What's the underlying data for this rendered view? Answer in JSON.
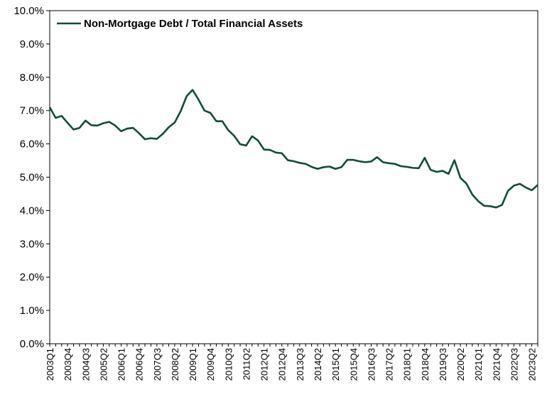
{
  "chart_data": {
    "type": "line",
    "title": "",
    "xlabel": "",
    "ylabel": "",
    "ylim": [
      0,
      10
    ],
    "grid": false,
    "legend_position": "top-left",
    "line_color": "#0f4d3a",
    "y_ticks": [
      "0.0%",
      "1.0%",
      "2.0%",
      "3.0%",
      "4.0%",
      "5.0%",
      "6.0%",
      "7.0%",
      "8.0%",
      "9.0%",
      "10.0%"
    ],
    "x_tick_labels": [
      "2003Q1",
      "2003Q4",
      "2004Q3",
      "2005Q2",
      "2006Q1",
      "2006Q4",
      "2007Q3",
      "2008Q2",
      "2009Q1",
      "2009Q4",
      "2010Q3",
      "2011Q2",
      "2012Q1",
      "2012Q4",
      "2013Q3",
      "2014Q2",
      "2015Q1",
      "2015Q4",
      "2016Q3",
      "2017Q2",
      "2018Q1",
      "2018Q4",
      "2019Q3",
      "2020Q2",
      "2021Q1",
      "2021Q4",
      "2022Q3",
      "2023Q2"
    ],
    "categories": [
      "2003Q1",
      "2003Q2",
      "2003Q3",
      "2003Q4",
      "2004Q1",
      "2004Q2",
      "2004Q3",
      "2004Q4",
      "2005Q1",
      "2005Q2",
      "2005Q3",
      "2005Q4",
      "2006Q1",
      "2006Q2",
      "2006Q3",
      "2006Q4",
      "2007Q1",
      "2007Q2",
      "2007Q3",
      "2007Q4",
      "2008Q1",
      "2008Q2",
      "2008Q3",
      "2008Q4",
      "2009Q1",
      "2009Q2",
      "2009Q3",
      "2009Q4",
      "2010Q1",
      "2010Q2",
      "2010Q3",
      "2010Q4",
      "2011Q1",
      "2011Q2",
      "2011Q3",
      "2011Q4",
      "2012Q1",
      "2012Q2",
      "2012Q3",
      "2012Q4",
      "2013Q1",
      "2013Q2",
      "2013Q3",
      "2013Q4",
      "2014Q1",
      "2014Q2",
      "2014Q3",
      "2014Q4",
      "2015Q1",
      "2015Q2",
      "2015Q3",
      "2015Q4",
      "2016Q1",
      "2016Q2",
      "2016Q3",
      "2016Q4",
      "2017Q1",
      "2017Q2",
      "2017Q3",
      "2017Q4",
      "2018Q1",
      "2018Q2",
      "2018Q3",
      "2018Q4",
      "2019Q1",
      "2019Q2",
      "2019Q3",
      "2019Q4",
      "2020Q1",
      "2020Q2",
      "2020Q3",
      "2020Q4",
      "2021Q1",
      "2021Q2",
      "2021Q3",
      "2021Q4",
      "2022Q1",
      "2022Q2",
      "2022Q3",
      "2022Q4",
      "2023Q1",
      "2023Q2",
      "2023Q3"
    ],
    "series": [
      {
        "name": "Non-Mortgage Debt / Total Financial Assets",
        "values": [
          7.1,
          6.78,
          6.84,
          6.63,
          6.43,
          6.48,
          6.7,
          6.56,
          6.55,
          6.62,
          6.66,
          6.55,
          6.38,
          6.46,
          6.48,
          6.32,
          6.14,
          6.17,
          6.15,
          6.3,
          6.5,
          6.64,
          6.98,
          7.43,
          7.62,
          7.33,
          7.0,
          6.93,
          6.68,
          6.68,
          6.41,
          6.24,
          5.99,
          5.95,
          6.23,
          6.1,
          5.83,
          5.82,
          5.74,
          5.72,
          5.51,
          5.48,
          5.43,
          5.4,
          5.31,
          5.25,
          5.3,
          5.32,
          5.25,
          5.3,
          5.52,
          5.52,
          5.48,
          5.45,
          5.47,
          5.6,
          5.45,
          5.42,
          5.4,
          5.33,
          5.31,
          5.28,
          5.27,
          5.58,
          5.22,
          5.16,
          5.19,
          5.1,
          5.51,
          4.98,
          4.81,
          4.48,
          4.28,
          4.14,
          4.13,
          4.09,
          4.17,
          4.59,
          4.75,
          4.8,
          4.69,
          4.61,
          4.77
        ]
      }
    ]
  }
}
